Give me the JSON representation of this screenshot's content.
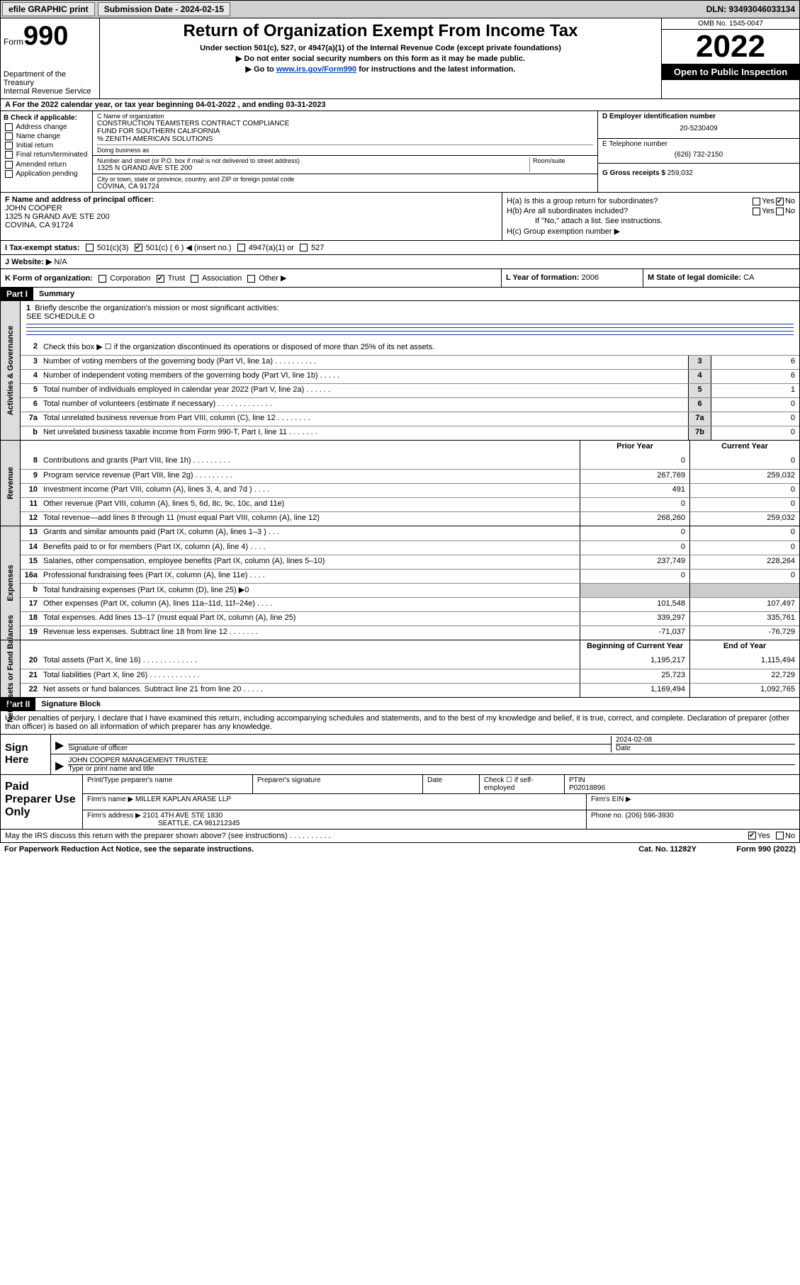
{
  "top_bar": {
    "efile": "efile GRAPHIC print",
    "submission_label": "Submission Date - 2024-02-15",
    "dln": "DLN: 93493046033134"
  },
  "header": {
    "form_word": "Form",
    "form_num": "990",
    "dept": "Department of the Treasury",
    "irs": "Internal Revenue Service",
    "title": "Return of Organization Exempt From Income Tax",
    "sub1": "Under section 501(c), 527, or 4947(a)(1) of the Internal Revenue Code (except private foundations)",
    "sub2": "▶ Do not enter social security numbers on this form as it may be made public.",
    "sub3_a": "▶ Go to ",
    "sub3_link": "www.irs.gov/Form990",
    "sub3_b": " for instructions and the latest information.",
    "omb": "OMB No. 1545-0047",
    "year": "2022",
    "inspect": "Open to Public Inspection"
  },
  "row_a": "A For the 2022 calendar year, or tax year beginning 04-01-2022   , and ending 03-31-2023",
  "col_b": {
    "hdr": "B Check if applicable:",
    "items": [
      "Address change",
      "Name change",
      "Initial return",
      "Final return/terminated",
      "Amended return",
      "Application pending"
    ]
  },
  "col_c": {
    "name_lbl": "C Name of organization",
    "name1": "CONSTRUCTION TEAMSTERS CONTRACT COMPLIANCE",
    "name2": "FUND FOR SOUTHERN CALIFORNIA",
    "care": "% ZENITH AMERICAN SOLUTIONS",
    "dba": "Doing business as",
    "addr_lbl": "Number and street (or P.O. box if mail is not delivered to street address)",
    "room_lbl": "Room/suite",
    "addr": "1325 N GRAND AVE STE 200",
    "city_lbl": "City or town, state or province, country, and ZIP or foreign postal code",
    "city": "COVINA, CA  91724"
  },
  "col_d": {
    "ein_lbl": "D Employer identification number",
    "ein": "20-5230409",
    "tel_lbl": "E Telephone number",
    "tel": "(626) 732-2150",
    "gross_lbl": "G Gross receipts $",
    "gross": "259,032"
  },
  "block_f": {
    "lbl": "F Name and address of principal officer:",
    "name": "JOHN COOPER",
    "addr1": "1325 N GRAND AVE STE 200",
    "addr2": "COVINA, CA  91724"
  },
  "block_h": {
    "ha": "H(a)  Is this a group return for subordinates?",
    "hb": "H(b)  Are all subordinates included?",
    "hb_note": "If \"No,\" attach a list. See instructions.",
    "hc": "H(c)  Group exemption number ▶",
    "yes": "Yes",
    "no": "No"
  },
  "row_i": {
    "lbl": "I   Tax-exempt status:",
    "c3": "501(c)(3)",
    "c": "501(c) ( 6 ) ◀ (insert no.)",
    "a1": "4947(a)(1) or",
    "s527": "527"
  },
  "row_j": {
    "lbl": "J   Website: ▶",
    "val": "N/A"
  },
  "row_k": {
    "k": "K Form of organization:",
    "opts": [
      "Corporation",
      "Trust",
      "Association",
      "Other ▶"
    ],
    "l_lbl": "L Year of formation:",
    "l_val": "2006",
    "m_lbl": "M State of legal domicile:",
    "m_val": "CA"
  },
  "parts": {
    "p1": "Part I",
    "p1t": "Summary",
    "p2": "Part II",
    "p2t": "Signature Block"
  },
  "section_labels": {
    "gov": "Activities & Governance",
    "rev": "Revenue",
    "exp": "Expenses",
    "net": "Net Assets or Fund Balances"
  },
  "brief": {
    "num": "1",
    "txt": "Briefly describe the organization's mission or most significant activities:",
    "val": "SEE SCHEDULE O"
  },
  "gov_lines": [
    {
      "n": "2",
      "t": "Check this box ▶ ☐  if the organization discontinued its operations or disposed of more than 25% of its net assets."
    },
    {
      "n": "3",
      "t": "Number of voting members of the governing body (Part VI, line 1a)  .   .   .   .   .   .   .   .   .   .",
      "c": "3",
      "v": "6"
    },
    {
      "n": "4",
      "t": "Number of independent voting members of the governing body (Part VI, line 1b)   .   .   .   .   .",
      "c": "4",
      "v": "6"
    },
    {
      "n": "5",
      "t": "Total number of individuals employed in calendar year 2022 (Part V, line 2a)   .   .   .   .   .   .",
      "c": "5",
      "v": "1"
    },
    {
      "n": "6",
      "t": "Total number of volunteers (estimate if necessary)   .   .   .   .   .   .   .   .   .   .   .   .   .",
      "c": "6",
      "v": "0"
    },
    {
      "n": "7a",
      "t": "Total unrelated business revenue from Part VIII, column (C), line 12   .   .   .   .   .   .   .   .",
      "c": "7a",
      "v": "0"
    },
    {
      "n": "b",
      "t": "Net unrelated business taxable income from Form 990-T, Part I, line 11   .   .   .   .   .   .   .",
      "c": "7b",
      "v": "0"
    }
  ],
  "two_col_hdr": {
    "py": "Prior Year",
    "cy": "Current Year",
    "boy": "Beginning of Current Year",
    "eoy": "End of Year"
  },
  "rev_lines": [
    {
      "n": "8",
      "t": "Contributions and grants (Part VIII, line 1h)   .   .   .   .   .   .   .   .   .",
      "py": "0",
      "cy": "0"
    },
    {
      "n": "9",
      "t": "Program service revenue (Part VIII, line 2g)   .   .   .   .   .   .   .   .   .",
      "py": "267,769",
      "cy": "259,032"
    },
    {
      "n": "10",
      "t": "Investment income (Part VIII, column (A), lines 3, 4, and 7d )   .   .   .   .",
      "py": "491",
      "cy": "0"
    },
    {
      "n": "11",
      "t": "Other revenue (Part VIII, column (A), lines 5, 6d, 8c, 9c, 10c, and 11e)",
      "py": "0",
      "cy": "0"
    },
    {
      "n": "12",
      "t": "Total revenue—add lines 8 through 11 (must equal Part VIII, column (A), line 12)",
      "py": "268,260",
      "cy": "259,032"
    }
  ],
  "exp_lines": [
    {
      "n": "13",
      "t": "Grants and similar amounts paid (Part IX, column (A), lines 1–3 )   .   .   .",
      "py": "0",
      "cy": "0"
    },
    {
      "n": "14",
      "t": "Benefits paid to or for members (Part IX, column (A), line 4)   .   .   .   .",
      "py": "0",
      "cy": "0"
    },
    {
      "n": "15",
      "t": "Salaries, other compensation, employee benefits (Part IX, column (A), lines 5–10)",
      "py": "237,749",
      "cy": "228,264"
    },
    {
      "n": "16a",
      "t": "Professional fundraising fees (Part IX, column (A), line 11e)   .   .   .   .",
      "py": "0",
      "cy": "0"
    },
    {
      "n": "b",
      "t": "Total fundraising expenses (Part IX, column (D), line 25) ▶0",
      "py": "",
      "cy": ""
    },
    {
      "n": "17",
      "t": "Other expenses (Part IX, column (A), lines 11a–11d, 11f–24e)   .   .   .   .",
      "py": "101,548",
      "cy": "107,497"
    },
    {
      "n": "18",
      "t": "Total expenses. Add lines 13–17 (must equal Part IX, column (A), line 25)",
      "py": "339,297",
      "cy": "335,761"
    },
    {
      "n": "19",
      "t": "Revenue less expenses. Subtract line 18 from line 12   .   .   .   .   .   .   .",
      "py": "-71,037",
      "cy": "-76,729"
    }
  ],
  "net_lines": [
    {
      "n": "20",
      "t": "Total assets (Part X, line 16)   .   .   .   .   .   .   .   .   .   .   .   .   .",
      "py": "1,195,217",
      "cy": "1,115,494"
    },
    {
      "n": "21",
      "t": "Total liabilities (Part X, line 26)   .   .   .   .   .   .   .   .   .   .   .   .",
      "py": "25,723",
      "cy": "22,729"
    },
    {
      "n": "22",
      "t": "Net assets or fund balances. Subtract line 21 from line 20   .   .   .   .   .",
      "py": "1,169,494",
      "cy": "1,092,765"
    }
  ],
  "sig_decl": "Under penalties of perjury, I declare that I have examined this return, including accompanying schedules and statements, and to the best of my knowledge and belief, it is true, correct, and complete. Declaration of preparer (other than officer) is based on all information of which preparer has any knowledge.",
  "sign": {
    "here": "Sign Here",
    "sig_lbl": "Signature of officer",
    "date_lbl": "Date",
    "date": "2024-02-08",
    "name": "JOHN COOPER  MANAGEMENT TRUSTEE",
    "name_lbl": "Type or print name and title"
  },
  "prep": {
    "hdr": "Paid Preparer Use Only",
    "c1": "Print/Type preparer's name",
    "c2": "Preparer's signature",
    "c3": "Date",
    "c4a": "Check ☐ if self-employed",
    "c5": "PTIN",
    "ptin": "P02018896",
    "firm_lbl": "Firm's name    ▶",
    "firm": "MILLER KAPLAN ARASE LLP",
    "ein_lbl": "Firm's EIN ▶",
    "addr_lbl": "Firm's address ▶",
    "addr1": "2101 4TH AVE STE 1830",
    "addr2": "SEATTLE, CA  981212345",
    "phone_lbl": "Phone no.",
    "phone": "(206) 596-3930"
  },
  "footer": {
    "discuss": "May the IRS discuss this return with the preparer shown above? (see instructions)   .   .   .   .   .   .   .   .   .   .",
    "yes": "Yes",
    "no": "No",
    "pra": "For Paperwork Reduction Act Notice, see the separate instructions.",
    "cat": "Cat. No. 11282Y",
    "form": "Form 990 (2022)"
  }
}
